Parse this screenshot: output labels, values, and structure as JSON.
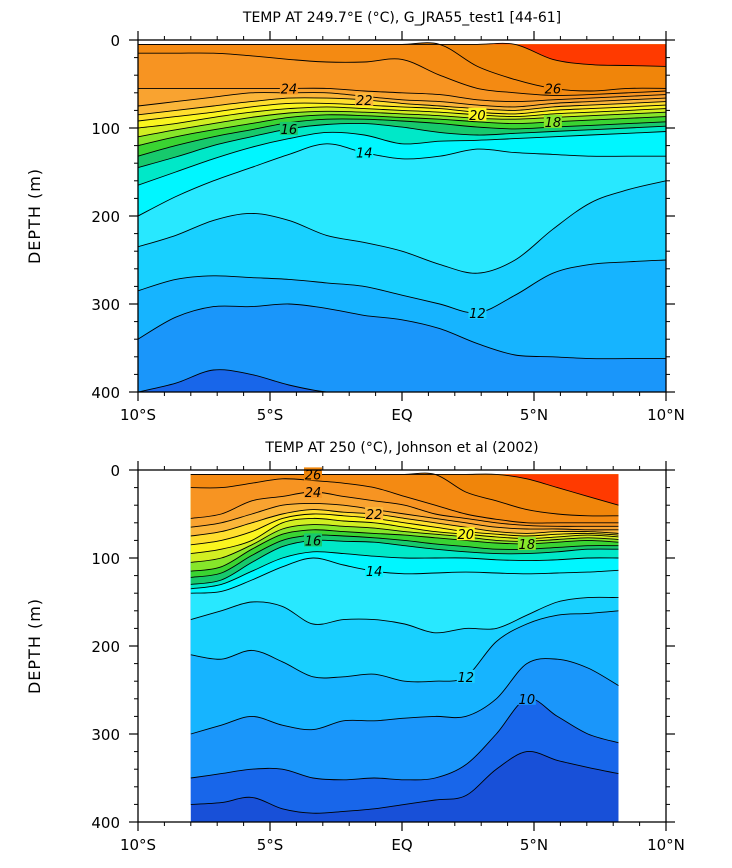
{
  "chart_data": [
    {
      "type": "contour",
      "title": "TEMP AT 249.7°E (°C), G_JRA55_test1 [44-61]",
      "xlabel": "",
      "ylabel": "DEPTH (m)",
      "x_ticks": [
        "10°S",
        "5°S",
        "EQ",
        "5°N",
        "10°N"
      ],
      "x_tick_values": [
        -10,
        -5,
        0,
        5,
        10
      ],
      "y_ticks": [
        "0",
        "100",
        "200",
        "300",
        "400"
      ],
      "y_tick_values": [
        0,
        100,
        200,
        300,
        400
      ],
      "xlim": [
        -10,
        10
      ],
      "ylim": [
        400,
        0
      ],
      "data_xlim": [
        -10,
        10
      ],
      "data_ylim": [
        5,
        400
      ],
      "surface_warm_pool": {
        "lat_range": [
          4.8,
          10
        ],
        "temp": 28
      },
      "levels": [
        {
          "value": 28,
          "depth": [
            0,
            0,
            0,
            0,
            0,
            0,
            0,
            0,
            0,
            0,
            0,
            22,
            28,
            29,
            30
          ]
        },
        {
          "value": 26,
          "depth": [
            0,
            0,
            0,
            0,
            0,
            0,
            0,
            0,
            0,
            30,
            45,
            55,
            58,
            55,
            55
          ]
        },
        {
          "value": 25,
          "depth": [
            15,
            15,
            15,
            18,
            22,
            25,
            25,
            22,
            40,
            55,
            60,
            63,
            62,
            60,
            58
          ]
        },
        {
          "value": 24,
          "depth": [
            55,
            55,
            55,
            55,
            55,
            55,
            58,
            60,
            62,
            68,
            70,
            68,
            66,
            64,
            62
          ]
        },
        {
          "value": 23,
          "depth": [
            75,
            70,
            65,
            60,
            60,
            60,
            64,
            68,
            70,
            74,
            76,
            72,
            70,
            68,
            66
          ]
        },
        {
          "value": 22,
          "depth": [
            85,
            80,
            75,
            70,
            66,
            66,
            68,
            72,
            75,
            78,
            80,
            76,
            74,
            72,
            70
          ]
        },
        {
          "value": 21,
          "depth": [
            92,
            87,
            82,
            76,
            72,
            72,
            74,
            76,
            78,
            82,
            84,
            80,
            78,
            76,
            74
          ]
        },
        {
          "value": 20,
          "depth": [
            100,
            95,
            88,
            82,
            78,
            76,
            78,
            80,
            82,
            85,
            87,
            84,
            82,
            80,
            78
          ]
        },
        {
          "value": 19,
          "depth": [
            110,
            102,
            95,
            88,
            83,
            81,
            82,
            84,
            86,
            89,
            90,
            88,
            86,
            84,
            82
          ]
        },
        {
          "value": 18,
          "depth": [
            120,
            110,
            102,
            95,
            88,
            85,
            86,
            88,
            90,
            93,
            95,
            93,
            91,
            89,
            87
          ]
        },
        {
          "value": 17,
          "depth": [
            132,
            120,
            110,
            102,
            94,
            90,
            90,
            92,
            95,
            99,
            101,
            99,
            97,
            95,
            93
          ]
        },
        {
          "value": 16,
          "depth": [
            145,
            133,
            120,
            110,
            101,
            96,
            95,
            99,
            105,
            108,
            106,
            104,
            102,
            100,
            98
          ]
        },
        {
          "value": 15,
          "depth": [
            165,
            150,
            135,
            122,
            112,
            105,
            108,
            118,
            115,
            114,
            112,
            110,
            108,
            106,
            104
          ]
        },
        {
          "value": 14,
          "depth": [
            200,
            178,
            160,
            145,
            130,
            118,
            128,
            135,
            132,
            124,
            128,
            130,
            132,
            132,
            132
          ]
        },
        {
          "value": 13,
          "depth": [
            235,
            222,
            205,
            197,
            205,
            222,
            230,
            240,
            255,
            265,
            250,
            215,
            185,
            170,
            160
          ]
        },
        {
          "value": 12,
          "depth": [
            285,
            272,
            268,
            270,
            272,
            276,
            280,
            290,
            300,
            310,
            290,
            265,
            255,
            252,
            250
          ]
        },
        {
          "value": 11,
          "depth": [
            340,
            315,
            303,
            303,
            300,
            305,
            313,
            318,
            328,
            345,
            358,
            360,
            362,
            362,
            362
          ]
        },
        {
          "value": 10,
          "depth": [
            400,
            390,
            375,
            380,
            392,
            400,
            400,
            400,
            400,
            400,
            400,
            400,
            400,
            400,
            400
          ]
        },
        {
          "value": 9,
          "depth": [
            400,
            400,
            400,
            400,
            400,
            400,
            400,
            400,
            400,
            400,
            400,
            400,
            400,
            400,
            400
          ]
        }
      ],
      "contour_labels": [
        "24",
        "22",
        "20",
        "18",
        "16",
        "14",
        "12",
        "26"
      ]
    },
    {
      "type": "contour",
      "title": "TEMP AT 250 (°C), Johnson et al (2002)",
      "xlabel": "",
      "ylabel": "DEPTH (m)",
      "x_ticks": [
        "10°S",
        "5°S",
        "EQ",
        "5°N",
        "10°N"
      ],
      "x_tick_values": [
        -10,
        -5,
        0,
        5,
        10
      ],
      "y_ticks": [
        "0",
        "100",
        "200",
        "300",
        "400"
      ],
      "y_tick_values": [
        0,
        100,
        200,
        300,
        400
      ],
      "xlim": [
        -10,
        10
      ],
      "ylim": [
        400,
        0
      ],
      "data_xlim": [
        -8,
        8.2
      ],
      "data_ylim": [
        5,
        400
      ],
      "surface_warm_pool": {
        "lat_range": [
          4.2,
          8.2
        ],
        "temp": 28
      },
      "levels": [
        {
          "value": 28,
          "depth": [
            0,
            0,
            0,
            0,
            0,
            0,
            0,
            0,
            0,
            0,
            0,
            10,
            20,
            30,
            40
          ]
        },
        {
          "value": 26,
          "depth": [
            0,
            0,
            0,
            0,
            0,
            0,
            0,
            0,
            0,
            25,
            35,
            45,
            50,
            52,
            52
          ]
        },
        {
          "value": 25,
          "depth": [
            20,
            20,
            15,
            10,
            12,
            15,
            20,
            30,
            40,
            50,
            56,
            60,
            60,
            60,
            60
          ]
        },
        {
          "value": 24,
          "depth": [
            55,
            50,
            35,
            30,
            25,
            30,
            35,
            40,
            50,
            55,
            60,
            63,
            64,
            64,
            64
          ]
        },
        {
          "value": 23,
          "depth": [
            65,
            60,
            50,
            40,
            38,
            40,
            45,
            50,
            55,
            60,
            65,
            67,
            67,
            68,
            68
          ]
        },
        {
          "value": 22,
          "depth": [
            75,
            70,
            60,
            50,
            45,
            48,
            50,
            55,
            60,
            65,
            70,
            72,
            70,
            70,
            72
          ]
        },
        {
          "value": 21,
          "depth": [
            85,
            80,
            70,
            55,
            50,
            52,
            55,
            60,
            65,
            70,
            73,
            75,
            73,
            72,
            74
          ]
        },
        {
          "value": 20,
          "depth": [
            95,
            90,
            80,
            60,
            55,
            58,
            60,
            65,
            70,
            73,
            76,
            78,
            76,
            74,
            76
          ]
        },
        {
          "value": 19,
          "depth": [
            105,
            100,
            85,
            67,
            62,
            64,
            66,
            70,
            73,
            76,
            80,
            81,
            79,
            77,
            79
          ]
        },
        {
          "value": 18,
          "depth": [
            115,
            110,
            90,
            73,
            68,
            70,
            72,
            74,
            77,
            80,
            83,
            84,
            82,
            80,
            82
          ]
        },
        {
          "value": 17,
          "depth": [
            122,
            117,
            97,
            80,
            74,
            75,
            77,
            80,
            84,
            87,
            90,
            90,
            88,
            86,
            86
          ]
        },
        {
          "value": 16,
          "depth": [
            130,
            125,
            105,
            87,
            80,
            81,
            82,
            86,
            90,
            93,
            95,
            95,
            93,
            90,
            90
          ]
        },
        {
          "value": 15,
          "depth": [
            135,
            130,
            115,
            100,
            93,
            95,
            98,
            100,
            100,
            100,
            102,
            103,
            102,
            100,
            100
          ]
        },
        {
          "value": 14,
          "depth": [
            140,
            138,
            125,
            110,
            100,
            108,
            115,
            118,
            117,
            116,
            117,
            118,
            117,
            116,
            114
          ]
        },
        {
          "value": 13,
          "depth": [
            170,
            160,
            150,
            155,
            175,
            170,
            170,
            175,
            185,
            180,
            180,
            165,
            150,
            145,
            145
          ]
        },
        {
          "value": 12,
          "depth": [
            210,
            215,
            205,
            218,
            235,
            235,
            232,
            240,
            240,
            235,
            195,
            175,
            165,
            163,
            160
          ]
        },
        {
          "value": 11,
          "depth": [
            300,
            290,
            280,
            290,
            295,
            285,
            285,
            282,
            280,
            280,
            260,
            220,
            215,
            225,
            245
          ]
        },
        {
          "value": 10,
          "depth": [
            350,
            345,
            340,
            340,
            350,
            352,
            350,
            352,
            350,
            335,
            300,
            260,
            280,
            300,
            310
          ]
        },
        {
          "value": 9,
          "depth": [
            380,
            378,
            372,
            385,
            390,
            388,
            385,
            380,
            375,
            370,
            340,
            320,
            330,
            338,
            345
          ]
        }
      ],
      "contour_labels": [
        "24",
        "22",
        "20",
        "18",
        "16",
        "14",
        "12",
        "10",
        "26"
      ]
    }
  ]
}
